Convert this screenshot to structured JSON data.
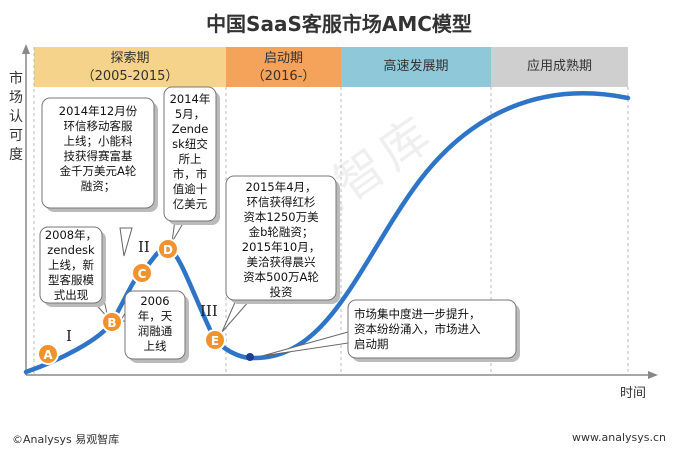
{
  "title": "中国SaaS客服市场AMC模型",
  "y_axis_label": "市场认可度",
  "x_axis_label": "时间",
  "phases": [
    {
      "label": "探索期",
      "sub": "（2005-2015）"
    },
    {
      "label": "启动期",
      "sub": "（2016-）"
    },
    {
      "label": "高速发展期",
      "sub": ""
    },
    {
      "label": "应用成熟期",
      "sub": ""
    }
  ],
  "stages": [
    "I",
    "II",
    "III"
  ],
  "points": [
    "A",
    "B",
    "C",
    "D",
    "E"
  ],
  "notes": {
    "n2005": "2008年，\nzendesk\n上线，新\n型客服模\n式出现",
    "n2006": "2006\n年，天\n润融通\n上线",
    "n2014a": "2014年12月份\n环信移动客服\n上线；小能科\n技获得赛富基\n金千万美元A轮\n融资；",
    "n2014b": "2014年\n5月，\nZende\nsk纽交\n所上\n市，市\n值逾十\n亿美元",
    "n2015": "2015年4月，\n环信获得红杉\n资本1250万美\n金b轮融资；\n2015年10月，\n美洽获得晨兴\n资本500万A轮\n投资",
    "n2016": "市场集中度进一步提升，\n资本纷纷涌入，市场进入\n启动期"
  },
  "watermark": "易观智库",
  "footer": {
    "left": "©Analysys 易观智库",
    "right": "www.analysys.cn"
  },
  "colors": {
    "curve": "#2e75c8",
    "marker": "#f0922e",
    "phase1": "#f5d38a",
    "phase2": "#f5a25a",
    "phase3": "#8fc9d9",
    "phase4": "#cfcfcf"
  }
}
